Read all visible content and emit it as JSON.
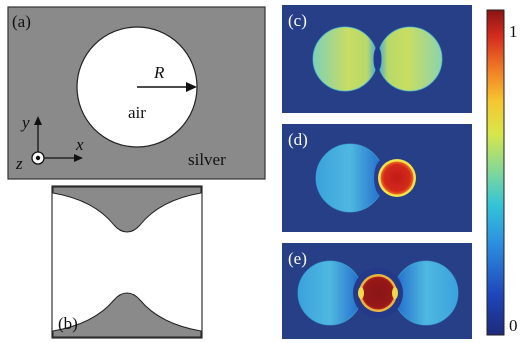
{
  "panels": {
    "a": {
      "label": "(a)",
      "radius_label": "R",
      "hole_label": "air",
      "metal_label": "silver",
      "axis_y": "y",
      "axis_x": "x",
      "axis_z": "z"
    },
    "b": {
      "label": "(b)"
    },
    "c": {
      "label": "(c)"
    },
    "d": {
      "label": "(d)"
    },
    "e": {
      "label": "(e)"
    }
  },
  "colorbar": {
    "max_label": "1",
    "min_label": "0",
    "colormap": "jet"
  },
  "colors": {
    "silver": "#8a8a8a",
    "field_background": "#263f86",
    "border": "#333333"
  }
}
